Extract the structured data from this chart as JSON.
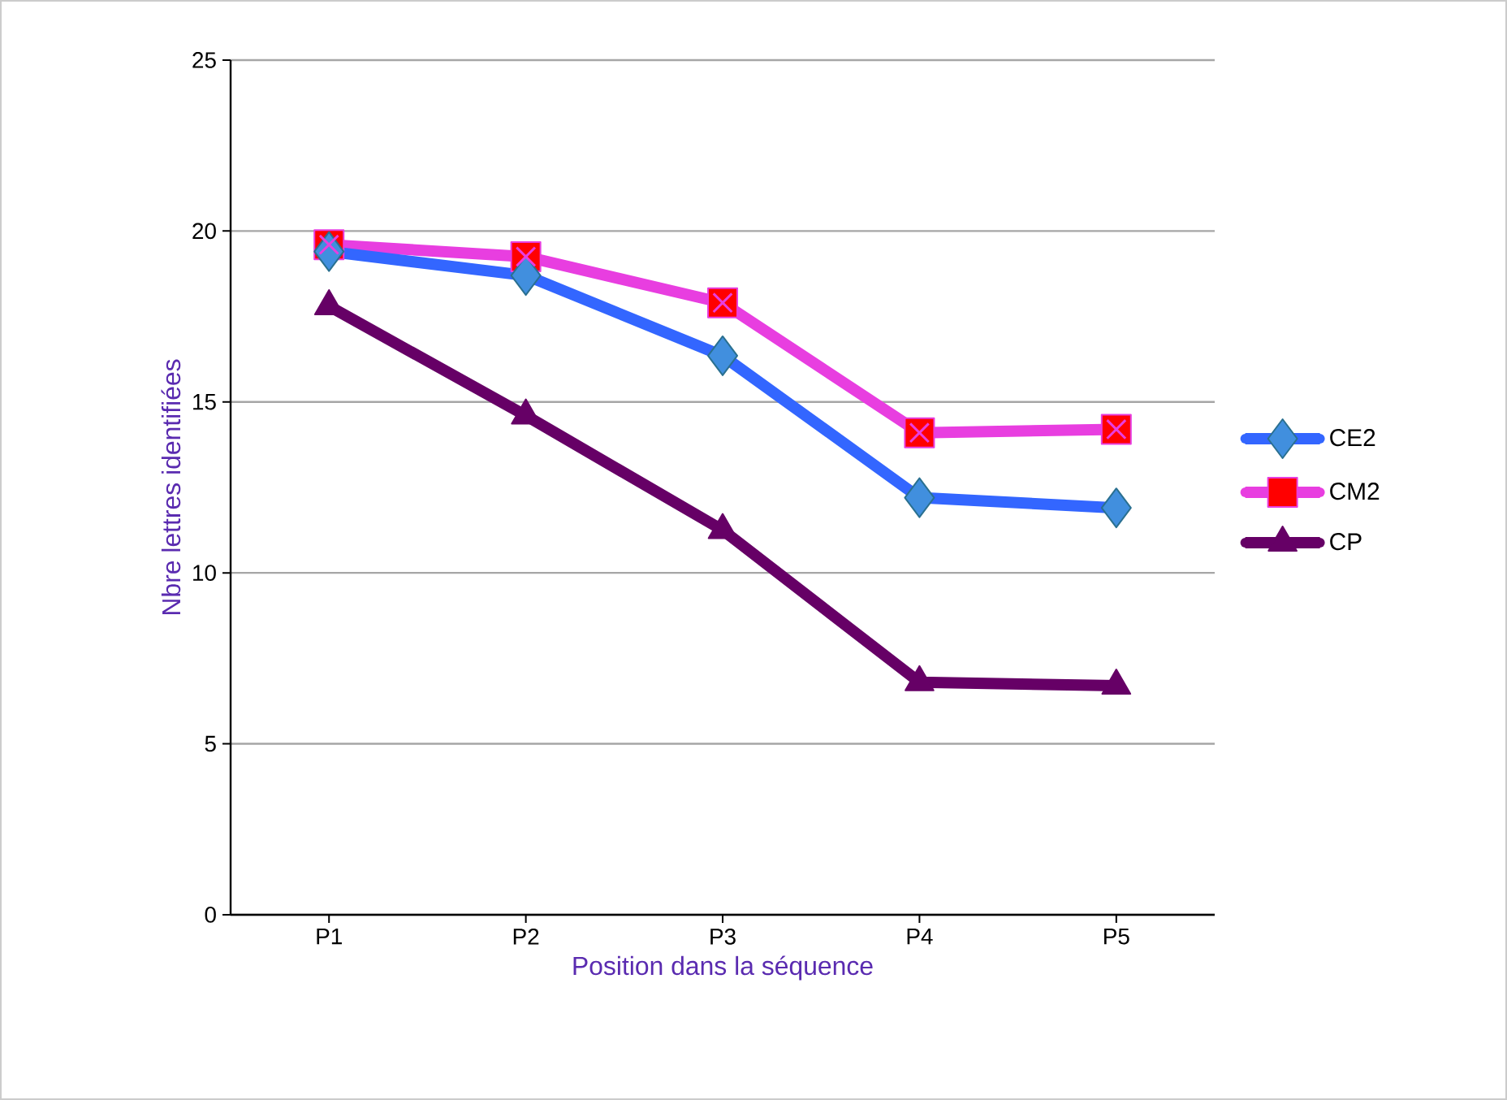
{
  "chart_data": {
    "type": "line",
    "xlabel": "Position dans la séquence",
    "ylabel": "Nbre lettres identifiées",
    "categories": [
      "P1",
      "P2",
      "P3",
      "P4",
      "P5"
    ],
    "series": [
      {
        "name": "CE2",
        "color": "#3366ff",
        "marker": "diamond",
        "values": [
          19.4,
          18.7,
          16.35,
          12.2,
          11.9
        ]
      },
      {
        "name": "CM2",
        "color": "#e83ee0",
        "marker": "square",
        "values": [
          19.6,
          19.25,
          17.9,
          14.1,
          14.2
        ]
      },
      {
        "name": "CP",
        "color": "#660066",
        "marker": "triangle",
        "values": [
          17.8,
          14.6,
          11.25,
          6.8,
          6.7
        ]
      }
    ],
    "ylim": [
      0,
      25
    ],
    "yticks": [
      0,
      5,
      10,
      15,
      20,
      25
    ],
    "grid": "y",
    "legend": "right"
  }
}
